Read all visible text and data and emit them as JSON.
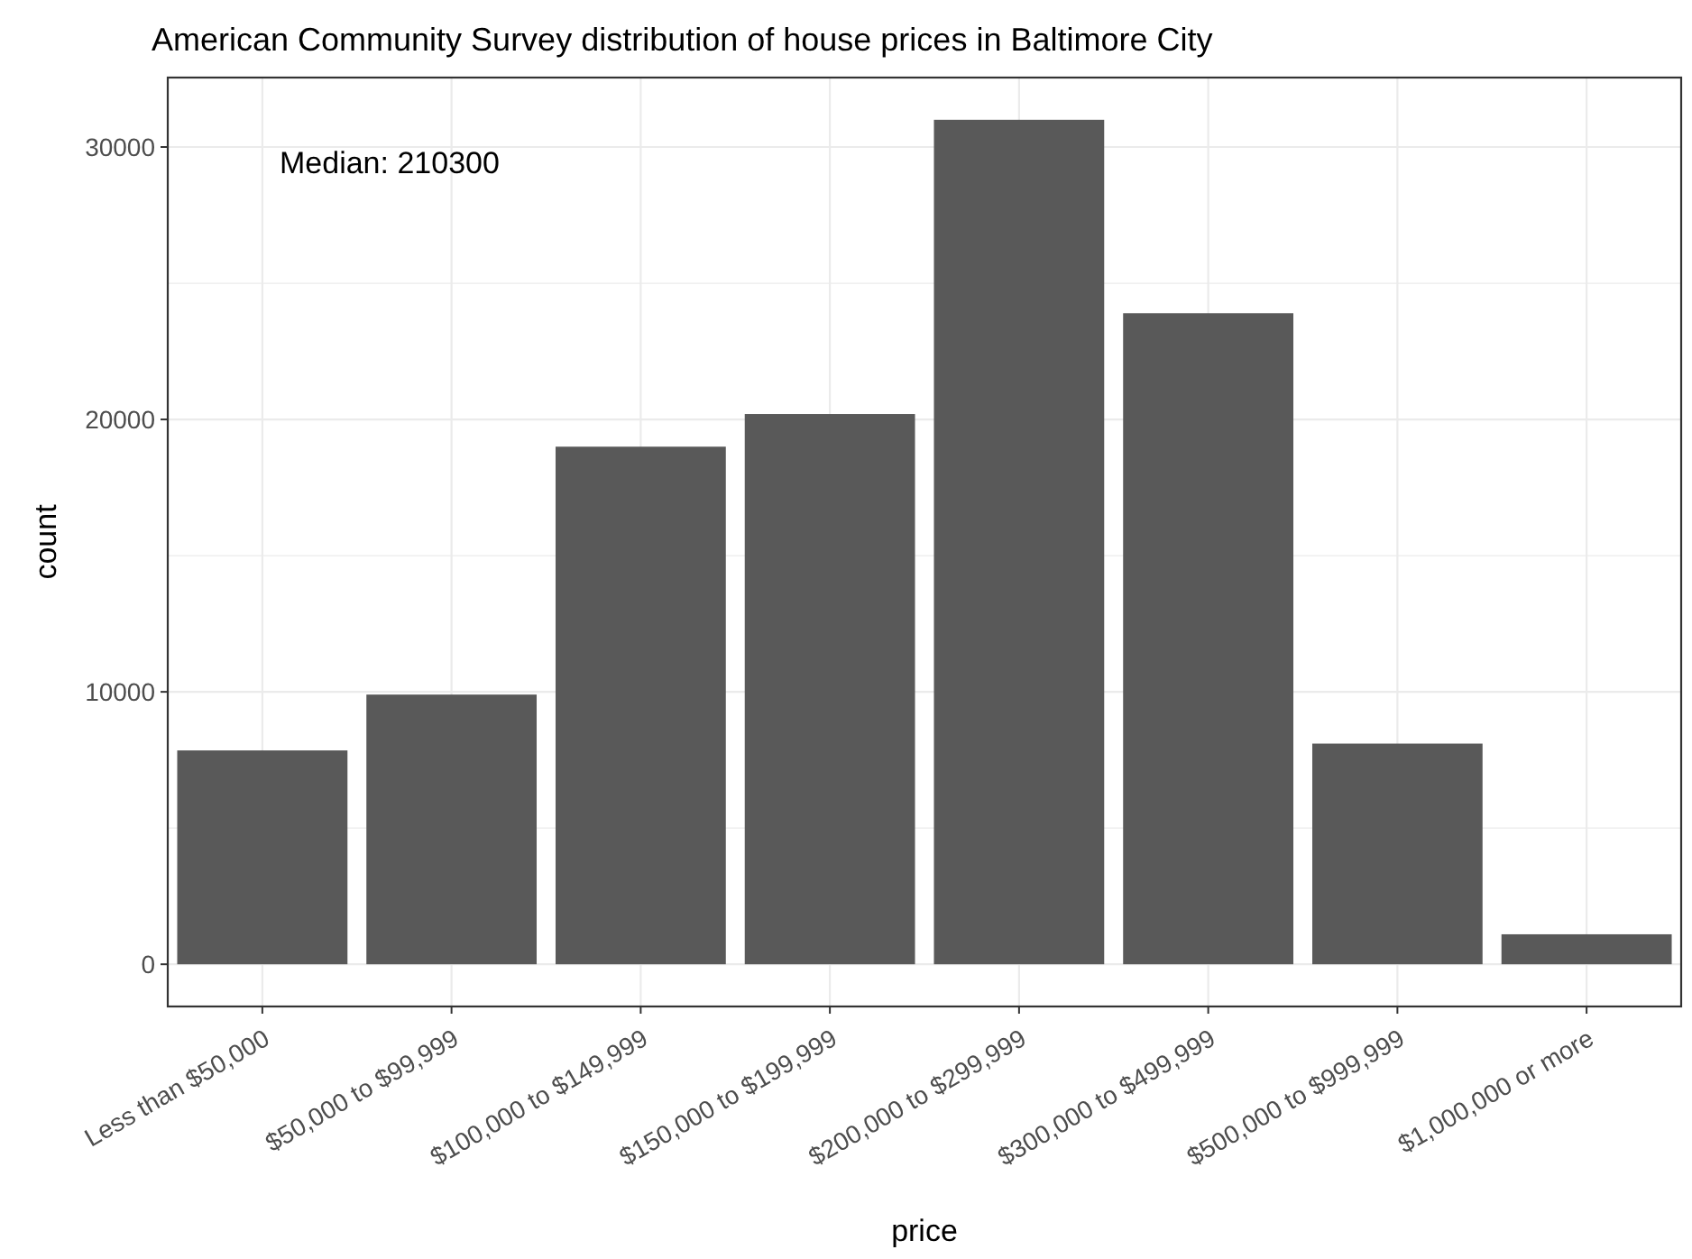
{
  "chart_data": {
    "type": "bar",
    "title": "American Community Survey distribution of house prices in Baltimore City",
    "xlabel": "price",
    "ylabel": "count",
    "categories": [
      "Less than $50,000",
      "$50,000 to $99,999",
      "$100,000 to $149,999",
      "$150,000 to $199,999",
      "$200,000 to $299,999",
      "$300,000 to $499,999",
      "$500,000 to $999,999",
      "$1,000,000 or more"
    ],
    "values": [
      7850,
      9900,
      19000,
      20200,
      31000,
      23900,
      8100,
      1100
    ],
    "color": "#595959",
    "ylim": [
      -1550,
      32550
    ],
    "yticks": [
      0,
      {
        "value": 5000,
        "label": null
      },
      10000,
      {
        "value": 15000,
        "label": null
      },
      20000,
      {
        "value": 25000,
        "label": null
      },
      30000
    ],
    "grid": true,
    "annotations": [
      "Median: 210300"
    ]
  }
}
